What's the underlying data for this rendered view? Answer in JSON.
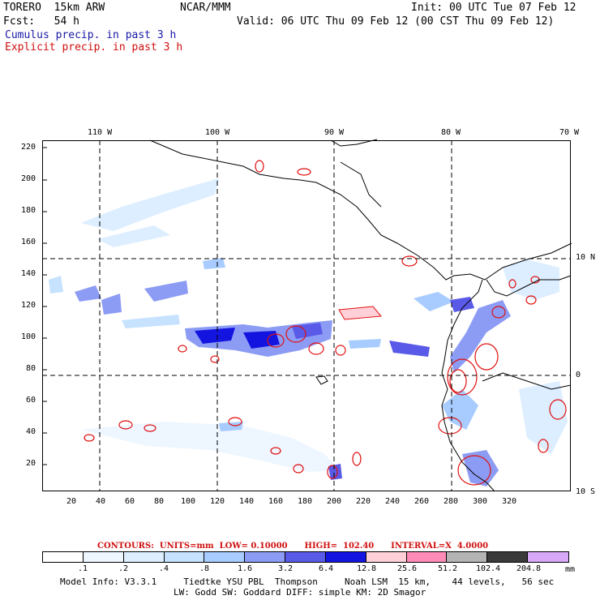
{
  "header": {
    "model": "TORERO  15km ARW",
    "center": "NCAR/MMM",
    "init": "Init: 00 UTC Tue 07 Feb 12",
    "fcst": "Fcst:   54 h",
    "valid": "Valid: 06 UTC Thu 09 Feb 12 (00 CST Thu 09 Feb 12)",
    "field1": "Cumulus precip. in past 3 h",
    "field2": "Explicit precip. in past 3 h"
  },
  "map": {
    "top_lon_labels": [
      "110 W",
      "100 W",
      "90 W",
      "80 W",
      "70 W"
    ],
    "right_lat_labels": [
      "10 N",
      "0",
      "10 S"
    ],
    "y_grid_labels": [
      "220",
      "200",
      "180",
      "160",
      "140",
      "120",
      "100",
      "80",
      "60",
      "40",
      "20"
    ],
    "x_grid_labels": [
      "20",
      "40",
      "60",
      "80",
      "100",
      "120",
      "140",
      "160",
      "180",
      "200",
      "220",
      "240",
      "260",
      "280",
      "300",
      "320"
    ],
    "colors": {
      "cumulus": "#2020e0",
      "explicit": "#e01010",
      "coast": "#000000"
    }
  },
  "contour_info": {
    "label": "CONTOURS:  UNITS=mm  LOW= 0.10000      HIGH=  102.40      INTERVAL=X  4.0000"
  },
  "legend": {
    "unit": "mm",
    "labels": [
      ".1",
      ".2",
      ".4",
      ".8",
      "1.6",
      "3.2",
      "6.4",
      "12.8",
      "25.6",
      "51.2",
      "102.4",
      "204.8"
    ],
    "colors": [
      "#ffffff",
      "#eef6ff",
      "#dceeff",
      "#c6e2ff",
      "#a8ccff",
      "#8c9cf4",
      "#5a5ae8",
      "#1414e0",
      "#ffd0d8",
      "#ff8cb8",
      "#b4b4b4",
      "#3a3a3a",
      "#d8a8f8"
    ]
  },
  "footer": {
    "line1": "Model Info: V3.3.1     Tiedtke YSU PBL  Thompson     Noah LSM  15 km,    44 levels,   56 sec",
    "line2": "LW: Godd SW: Goddard DIFF: simple KM: 2D Smagor"
  }
}
